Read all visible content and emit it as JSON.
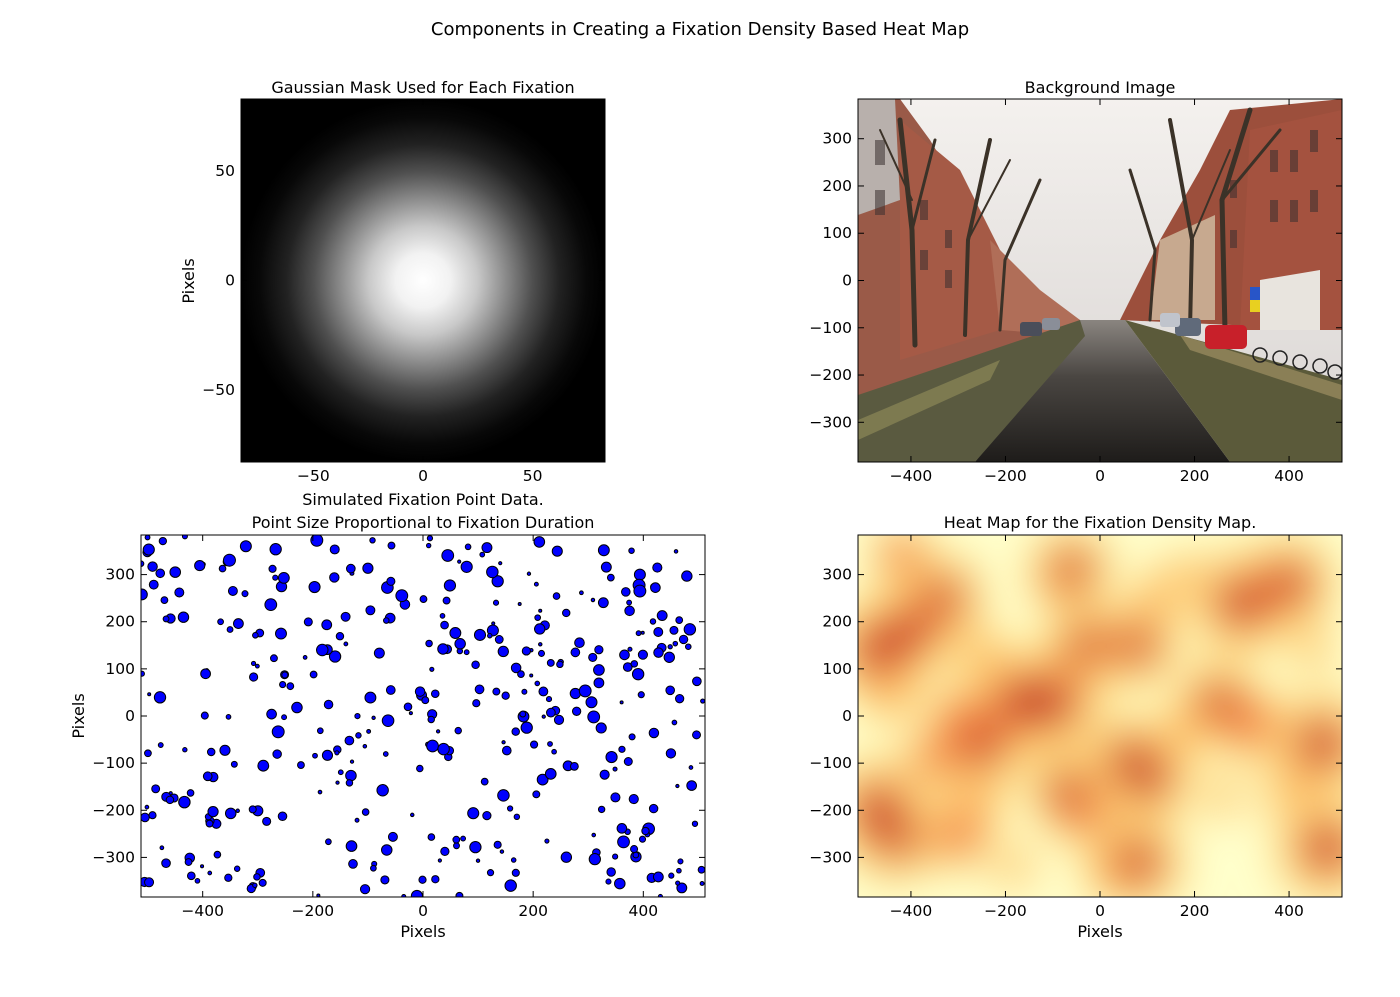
{
  "figure": {
    "title": "Components in Creating a Fixation Density Based Heat Map"
  },
  "chart_data": [
    {
      "id": "gaussian",
      "type": "heatmap",
      "title": "Gaussian Mask Used for Each Fixation",
      "title_line2": "",
      "xlabel": "",
      "ylabel": "Pixels",
      "xlim": [
        -83,
        83
      ],
      "ylim": [
        -83,
        83
      ],
      "xticks": [
        -50,
        0,
        50
      ],
      "yticks": [
        -50,
        0,
        50
      ],
      "colormap": "gray",
      "sigma": 33
    },
    {
      "id": "background",
      "type": "image",
      "title": "Background Image",
      "title_line2": "",
      "xlabel": "",
      "ylabel": "",
      "xlim": [
        -512,
        512
      ],
      "ylim": [
        -384,
        384
      ],
      "xticks": [
        -400,
        -200,
        0,
        200,
        400
      ],
      "yticks": [
        -300,
        -200,
        -100,
        0,
        100,
        200,
        300
      ],
      "scene": "canal street with trees, brick houses and parked cars"
    },
    {
      "id": "fixations",
      "type": "scatter",
      "title": "Simulated Fixation Point Data.",
      "title_line2": "Point Size Proportional to Fixation Duration",
      "xlabel": "Pixels",
      "ylabel": "Pixels",
      "xlim": [
        -512,
        512
      ],
      "ylim": [
        -384,
        384
      ],
      "xticks": [
        -400,
        -200,
        0,
        200,
        400
      ],
      "yticks": [
        -300,
        -200,
        -100,
        0,
        100,
        200,
        300
      ],
      "marker_color": "#0000ff",
      "point_count": 400,
      "seed": 7
    },
    {
      "id": "heatmap",
      "type": "heatmap",
      "title": "Heat Map for the Fixation Density Map.",
      "title_line2": "",
      "xlabel": "Pixels",
      "ylabel": "",
      "xlim": [
        -512,
        512
      ],
      "ylim": [
        -384,
        384
      ],
      "xticks": [
        -400,
        -200,
        0,
        200,
        400
      ],
      "yticks": [
        -300,
        -200,
        -100,
        0,
        100,
        200,
        300
      ],
      "colormap": "YlOrRd",
      "blobs": [
        [
          -470,
          140,
          1.0
        ],
        [
          -400,
          180,
          0.9
        ],
        [
          -420,
          340,
          0.6
        ],
        [
          -330,
          250,
          0.8
        ],
        [
          -250,
          130,
          0.5
        ],
        [
          -170,
          30,
          1.0
        ],
        [
          -100,
          30,
          1.0
        ],
        [
          -250,
          -60,
          0.9
        ],
        [
          -300,
          0,
          0.6
        ],
        [
          -60,
          310,
          0.8
        ],
        [
          -100,
          280,
          0.4
        ],
        [
          -30,
          150,
          0.8
        ],
        [
          80,
          150,
          0.8
        ],
        [
          120,
          250,
          0.5
        ],
        [
          60,
          -90,
          0.8
        ],
        [
          100,
          -130,
          0.9
        ],
        [
          -70,
          -160,
          0.8
        ],
        [
          -30,
          -210,
          0.6
        ],
        [
          80,
          -310,
          0.9
        ],
        [
          20,
          -330,
          0.5
        ],
        [
          -470,
          -200,
          1.0
        ],
        [
          -430,
          -260,
          0.8
        ],
        [
          -350,
          -90,
          0.6
        ],
        [
          -300,
          -250,
          0.7
        ],
        [
          -260,
          -180,
          0.5
        ],
        [
          180,
          -30,
          0.5
        ],
        [
          300,
          240,
          1.0
        ],
        [
          400,
          280,
          0.9
        ],
        [
          250,
          30,
          0.8
        ],
        [
          320,
          -20,
          0.7
        ],
        [
          470,
          -60,
          1.0
        ],
        [
          480,
          -280,
          1.0
        ],
        [
          400,
          -160,
          0.5
        ],
        [
          260,
          -170,
          0.4
        ],
        [
          -440,
          40,
          0.5
        ],
        [
          180,
          300,
          0.4
        ],
        [
          450,
          140,
          0.4
        ],
        [
          -180,
          -320,
          0.4
        ]
      ]
    }
  ]
}
